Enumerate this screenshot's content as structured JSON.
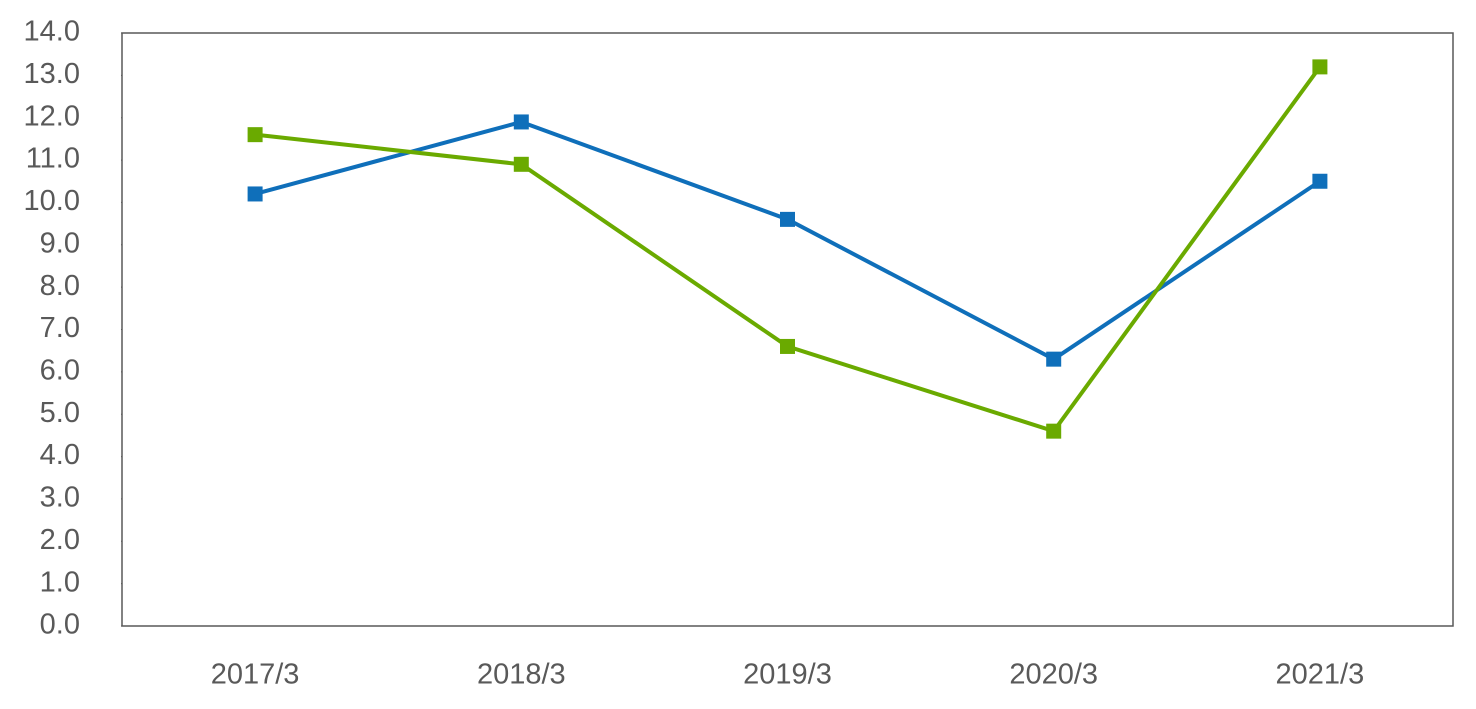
{
  "chart_data": {
    "type": "line",
    "categories": [
      "2017/3",
      "2018/3",
      "2019/3",
      "2020/3",
      "2021/3"
    ],
    "series": [
      {
        "color": "#0f6fba",
        "values": [
          10.2,
          11.9,
          9.6,
          6.3,
          10.5
        ]
      },
      {
        "color": "#6aaa00",
        "values": [
          11.6,
          10.9,
          6.6,
          4.6,
          13.2
        ]
      }
    ],
    "ylim": [
      0,
      14
    ],
    "yticks": [
      {
        "value": 0,
        "label": "0.0"
      },
      {
        "value": 1,
        "label": "1.0"
      },
      {
        "value": 2,
        "label": "2.0"
      },
      {
        "value": 3,
        "label": "3.0"
      },
      {
        "value": 4,
        "label": "4.0"
      },
      {
        "value": 5,
        "label": "5.0"
      },
      {
        "value": 6,
        "label": "6.0"
      },
      {
        "value": 7,
        "label": "7.0"
      },
      {
        "value": 8,
        "label": "8.0"
      },
      {
        "value": 9,
        "label": "9.0"
      },
      {
        "value": 10,
        "label": "10.0"
      },
      {
        "value": 11,
        "label": "11.0"
      },
      {
        "value": 12,
        "label": "12.0"
      },
      {
        "value": 13,
        "label": "13.0"
      },
      {
        "value": 14,
        "label": "14.0"
      }
    ],
    "grid": false
  }
}
